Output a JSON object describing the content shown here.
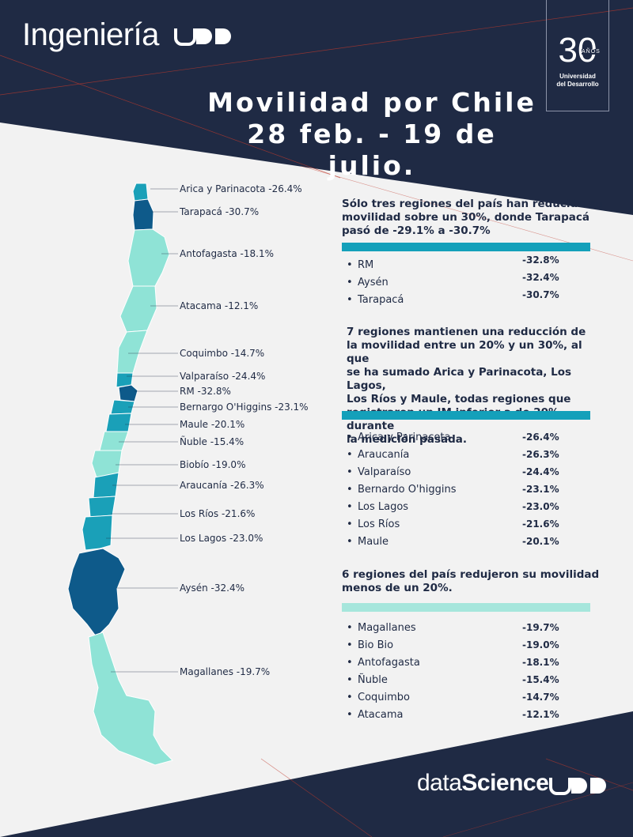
{
  "header": {
    "brand": "Ingeniería",
    "brand_logo": "UDD",
    "anniversary_number": "30",
    "anniversary_years": "AÑOS",
    "anniversary_name_line1": "Universidad",
    "anniversary_name_line2": "del Desarrollo"
  },
  "title": {
    "line1": "Movilidad por Chile",
    "line2": "28 feb. - 19 de julio."
  },
  "map_labels": [
    "Arica y Parinacota -26.4%",
    "Tarapacá -30.7%",
    "Antofagasta -18.1%",
    "Atacama -12.1%",
    "Coquimbo -14.7%",
    "Valparaíso -24.4%",
    "RM -32.8%",
    "Bernargo O'Higgins -23.1%",
    "Maule -20.1%",
    "Ñuble -15.4%",
    "Biobío -19.0%",
    "Araucanía -26.3%",
    "Los Ríos -21.6%",
    "Los Lagos -23.0%",
    "Aysén -32.4%",
    "Magallanes -19.7%"
  ],
  "groups": [
    {
      "heading": [
        "Sólo tres regiones del país han reducido su",
        "movilidad sobre un 30%, donde Tarapacá",
        "pasó de -29.1% a -30.7%"
      ],
      "color": "#14a0ba",
      "items": [
        {
          "name": "RM",
          "value": "-32.8%"
        },
        {
          "name": "Aysén",
          "value": "-32.4%"
        },
        {
          "name": "Tarapacá",
          "value": "-30.7%"
        }
      ]
    },
    {
      "heading": [
        "7 regiones mantienen una reducción de",
        "la movilidad entre un 20% y un 30%, al que",
        "se ha sumado Arica y Parinacota, Los Lagos,",
        "Los Ríos y Maule, todas regiones que",
        "registraron un IM inferior a de 20% durante",
        "la medición pasada."
      ],
      "color": "#14a0ba",
      "items": [
        {
          "name": "Arica y Parinacota",
          "value": "-26.4%"
        },
        {
          "name": "Araucanía",
          "value": "-26.3%"
        },
        {
          "name": "Valparaíso",
          "value": "-24.4%"
        },
        {
          "name": "Bernardo O'higgins",
          "value": "-23.1%"
        },
        {
          "name": "Los Lagos",
          "value": "-23.0%"
        },
        {
          "name": "Los Ríos",
          "value": "-21.6%"
        },
        {
          "name": "Maule",
          "value": "-20.1%"
        }
      ]
    },
    {
      "heading": [
        "6 regiones del país redujeron su movilidad",
        "menos de un 20%."
      ],
      "color": "#a6e6dc",
      "items": [
        {
          "name": "Magallanes",
          "value": "-19.7%"
        },
        {
          "name": "Bio Bio",
          "value": "-19.0%"
        },
        {
          "name": "Antofagasta",
          "value": "-18.1%"
        },
        {
          "name": "Ñuble",
          "value": "-15.4%"
        },
        {
          "name": "Coquimbo",
          "value": "-14.7%"
        },
        {
          "name": "Atacama",
          "value": "-12.1%"
        }
      ]
    }
  ],
  "footer": {
    "data": "data",
    "science": "Science",
    "logo": "UDD"
  },
  "colors": {
    "navy": "#1f2a44",
    "dark_blue": "#0e5a8a",
    "mid_teal": "#1aa0b8",
    "light_teal": "#8fe3d6",
    "accent_line": "#c0392b"
  }
}
